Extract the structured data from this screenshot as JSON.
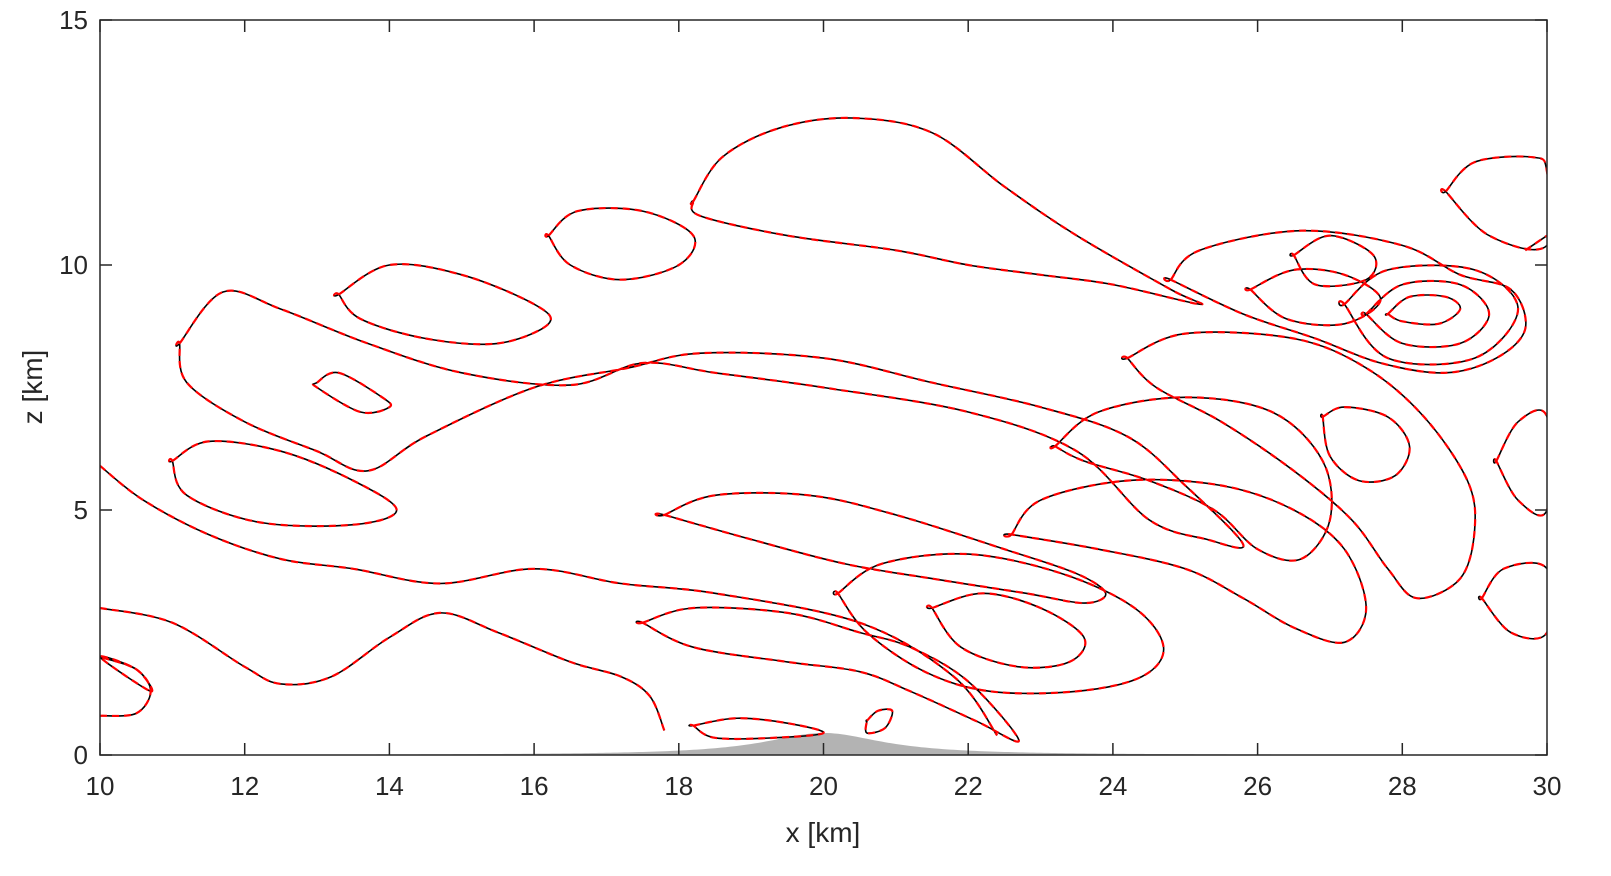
{
  "chart_data": {
    "type": "contour",
    "xlabel": "x [km]",
    "ylabel": "z [km]",
    "xlim": [
      10,
      30
    ],
    "ylim": [
      0,
      15
    ],
    "xticks": [
      "10",
      "12",
      "14",
      "16",
      "18",
      "20",
      "22",
      "24",
      "26",
      "28",
      "30"
    ],
    "yticks": [
      "0",
      "5",
      "10",
      "15"
    ],
    "grid": false,
    "legend": "none",
    "colors": {
      "series_a": "#000000",
      "series_b": "#ff0000",
      "terrain": "#b3b3b3",
      "axes": "#262626"
    },
    "series": [
      {
        "line_style": "solid",
        "color": "#000000"
      },
      {
        "line_style": "dashed",
        "color": "#ff0000"
      }
    ],
    "terrain": {
      "peak_x": 20,
      "peak_height": 0.45,
      "half_width": 1.0
    },
    "contours": [
      {
        "closed": true,
        "points": [
          [
            10.7,
            1.3
          ],
          [
            10.5,
            1.75
          ],
          [
            10,
            2
          ]
        ]
      },
      {
        "closed": false,
        "points": [
          [
            10,
            0.8
          ],
          [
            10.5,
            0.85
          ],
          [
            10.7,
            1.3
          ],
          [
            10.5,
            1.75
          ],
          [
            10,
            2
          ]
        ]
      },
      {
        "closed": false,
        "points": [
          [
            10,
            3
          ],
          [
            11,
            2.7
          ],
          [
            12,
            1.8
          ],
          [
            12.5,
            1.45
          ],
          [
            13.2,
            1.6
          ],
          [
            14,
            2.4
          ],
          [
            14.7,
            2.9
          ],
          [
            15.5,
            2.5
          ],
          [
            16.5,
            1.9
          ],
          [
            17.2,
            1.6
          ],
          [
            17.6,
            1.2
          ],
          [
            17.8,
            0.5
          ]
        ]
      },
      {
        "closed": false,
        "points": [
          [
            10,
            5.9
          ],
          [
            10.6,
            5.2
          ],
          [
            11.5,
            4.5
          ],
          [
            12.5,
            4
          ],
          [
            13.5,
            3.8
          ],
          [
            14.7,
            3.5
          ],
          [
            16,
            3.8
          ],
          [
            17.2,
            3.5
          ],
          [
            18.5,
            3.3
          ],
          [
            20.5,
            2.7
          ],
          [
            21.8,
            1.6
          ],
          [
            22.4,
            0.4
          ]
        ]
      },
      {
        "closed": true,
        "points": [
          [
            11,
            6
          ],
          [
            11.5,
            6.4
          ],
          [
            12.5,
            6.2
          ],
          [
            13.5,
            5.6
          ],
          [
            14.1,
            5
          ],
          [
            13.5,
            4.7
          ],
          [
            12.2,
            4.75
          ],
          [
            11.2,
            5.3
          ],
          [
            11,
            6
          ]
        ]
      },
      {
        "closed": true,
        "points": [
          [
            13,
            7.6
          ],
          [
            13.3,
            7.8
          ],
          [
            13.9,
            7.3
          ],
          [
            14,
            7.1
          ],
          [
            13.6,
            7
          ],
          [
            13,
            7.5
          ]
        ]
      },
      {
        "closed": true,
        "points": [
          [
            11.1,
            8.4
          ],
          [
            11.7,
            9.45
          ],
          [
            12.5,
            9.1
          ],
          [
            13.7,
            8.4
          ],
          [
            15,
            7.8
          ],
          [
            16.5,
            7.55
          ],
          [
            17.5,
            8
          ],
          [
            18.5,
            7.8
          ],
          [
            20,
            7.5
          ],
          [
            22,
            7
          ],
          [
            23.5,
            6.2
          ],
          [
            24.5,
            4.8
          ],
          [
            25.3,
            4.4
          ],
          [
            25.8,
            4.3
          ],
          [
            25,
            5.5
          ],
          [
            24.2,
            6.5
          ],
          [
            23,
            7.1
          ],
          [
            21.5,
            7.6
          ],
          [
            20,
            8.1
          ],
          [
            18.3,
            8.2
          ],
          [
            17.3,
            7.9
          ],
          [
            16,
            7.5
          ],
          [
            14.5,
            6.5
          ],
          [
            13.7,
            5.8
          ],
          [
            13,
            6.2
          ],
          [
            12,
            6.8
          ],
          [
            11.2,
            7.6
          ],
          [
            11.1,
            8.4
          ]
        ]
      },
      {
        "closed": true,
        "points": [
          [
            13.3,
            9.4
          ],
          [
            14,
            10
          ],
          [
            15,
            9.8
          ],
          [
            16,
            9.2
          ],
          [
            16.2,
            8.8
          ],
          [
            15.5,
            8.4
          ],
          [
            14.5,
            8.5
          ],
          [
            13.6,
            8.9
          ],
          [
            13.3,
            9.4
          ]
        ]
      },
      {
        "closed": true,
        "points": [
          [
            16.2,
            10.6
          ],
          [
            16.6,
            11.1
          ],
          [
            17.5,
            11.1
          ],
          [
            18.2,
            10.6
          ],
          [
            18,
            10
          ],
          [
            17.2,
            9.7
          ],
          [
            16.5,
            10
          ],
          [
            16.2,
            10.6
          ]
        ]
      },
      {
        "closed": true,
        "points": [
          [
            18.2,
            11.3
          ],
          [
            18.6,
            12.2
          ],
          [
            19.4,
            12.8
          ],
          [
            20.4,
            13
          ],
          [
            21.5,
            12.7
          ],
          [
            22.5,
            11.6
          ],
          [
            23.5,
            10.6
          ],
          [
            24.8,
            9.5
          ],
          [
            25.2,
            9.2
          ],
          [
            24,
            9.6
          ],
          [
            23,
            9.8
          ],
          [
            22,
            10
          ],
          [
            21,
            10.3
          ],
          [
            19.5,
            10.6
          ],
          [
            18.3,
            11
          ],
          [
            18.2,
            11.3
          ]
        ]
      },
      {
        "closed": true,
        "points": [
          [
            17.8,
            4.9
          ],
          [
            18.5,
            5.3
          ],
          [
            19.8,
            5.3
          ],
          [
            21,
            4.9
          ],
          [
            22.5,
            4.2
          ],
          [
            23.5,
            3.7
          ],
          [
            23.9,
            3.3
          ],
          [
            23.6,
            3.1
          ],
          [
            22.8,
            3.3
          ],
          [
            21.5,
            3.6
          ],
          [
            20.3,
            3.9
          ],
          [
            19,
            4.4
          ],
          [
            17.8,
            4.9
          ]
        ]
      },
      {
        "closed": true,
        "points": [
          [
            17.5,
            2.7
          ],
          [
            18.2,
            3
          ],
          [
            19.5,
            2.9
          ],
          [
            20.5,
            2.5
          ],
          [
            21.2,
            2.2
          ],
          [
            22,
            1.5
          ],
          [
            22.7,
            0.3
          ],
          [
            22.1,
            0.7
          ],
          [
            21.2,
            1.3
          ],
          [
            20.5,
            1.7
          ],
          [
            19.5,
            1.9
          ],
          [
            18.2,
            2.2
          ],
          [
            17.5,
            2.7
          ]
        ]
      },
      {
        "closed": true,
        "points": [
          [
            18.2,
            0.6
          ],
          [
            18.8,
            0.75
          ],
          [
            19.5,
            0.65
          ],
          [
            20,
            0.45
          ],
          [
            19.3,
            0.35
          ],
          [
            18.5,
            0.35
          ],
          [
            18.2,
            0.6
          ]
        ]
      },
      {
        "closed": true,
        "points": [
          [
            20.6,
            0.7
          ],
          [
            20.75,
            0.9
          ],
          [
            20.95,
            0.9
          ],
          [
            20.85,
            0.55
          ],
          [
            20.6,
            0.45
          ],
          [
            20.6,
            0.7
          ]
        ]
      },
      {
        "closed": true,
        "points": [
          [
            20.2,
            3.3
          ],
          [
            20.8,
            3.9
          ],
          [
            22,
            4.1
          ],
          [
            23.3,
            3.7
          ],
          [
            24.3,
            3
          ],
          [
            24.7,
            2.2
          ],
          [
            24.4,
            1.6
          ],
          [
            23.5,
            1.3
          ],
          [
            22.3,
            1.3
          ],
          [
            21.4,
            1.7
          ],
          [
            20.6,
            2.5
          ],
          [
            20.2,
            3.3
          ]
        ]
      },
      {
        "closed": true,
        "points": [
          [
            21.5,
            3
          ],
          [
            22.2,
            3.3
          ],
          [
            23,
            3
          ],
          [
            23.6,
            2.4
          ],
          [
            23.4,
            1.9
          ],
          [
            22.7,
            1.8
          ],
          [
            21.9,
            2.2
          ],
          [
            21.5,
            3
          ]
        ]
      },
      {
        "closed": true,
        "points": [
          [
            22.6,
            4.5
          ],
          [
            23,
            5.2
          ],
          [
            24.2,
            5.6
          ],
          [
            25.5,
            5.5
          ],
          [
            26.5,
            5
          ],
          [
            27.2,
            4.2
          ],
          [
            27.5,
            3
          ],
          [
            27.2,
            2.3
          ],
          [
            26.5,
            2.6
          ],
          [
            25.8,
            3.2
          ],
          [
            25,
            3.8
          ],
          [
            23.8,
            4.2
          ],
          [
            22.6,
            4.5
          ]
        ]
      },
      {
        "closed": true,
        "points": [
          [
            23.2,
            6.3
          ],
          [
            23.8,
            7
          ],
          [
            25,
            7.3
          ],
          [
            26.2,
            7
          ],
          [
            26.9,
            6
          ],
          [
            27,
            4.8
          ],
          [
            26.6,
            4
          ],
          [
            26,
            4.2
          ],
          [
            25.4,
            5
          ],
          [
            24.5,
            5.6
          ],
          [
            23.6,
            6
          ],
          [
            23.2,
            6.3
          ]
        ]
      },
      {
        "closed": true,
        "points": [
          [
            24.2,
            8.1
          ],
          [
            25,
            8.6
          ],
          [
            26.5,
            8.5
          ],
          [
            27.5,
            7.9
          ],
          [
            28.3,
            6.9
          ],
          [
            28.9,
            5.6
          ],
          [
            29,
            4.6
          ],
          [
            28.8,
            3.6
          ],
          [
            28.2,
            3.2
          ],
          [
            27.8,
            3.8
          ],
          [
            27.3,
            4.8
          ],
          [
            26.5,
            5.8
          ],
          [
            25.5,
            6.8
          ],
          [
            24.6,
            7.5
          ],
          [
            24.2,
            8.1
          ]
        ]
      },
      {
        "closed": true,
        "points": [
          [
            24.8,
            9.7
          ],
          [
            25.2,
            10.3
          ],
          [
            26.6,
            10.7
          ],
          [
            28,
            10.4
          ],
          [
            28.8,
            9.8
          ],
          [
            29.5,
            9.5
          ],
          [
            29.7,
            8.7
          ],
          [
            29.3,
            8.1
          ],
          [
            28.6,
            7.8
          ],
          [
            27.7,
            8
          ],
          [
            26.8,
            8.5
          ],
          [
            25.8,
            9
          ],
          [
            24.8,
            9.7
          ]
        ]
      },
      {
        "closed": true,
        "points": [
          [
            25.9,
            9.5
          ],
          [
            26.5,
            9.9
          ],
          [
            27.2,
            9.8
          ],
          [
            27.7,
            9.3
          ],
          [
            27.2,
            8.8
          ],
          [
            26.4,
            8.9
          ],
          [
            25.9,
            9.5
          ]
        ]
      },
      {
        "closed": true,
        "points": [
          [
            27.8,
            9
          ],
          [
            28.1,
            9.35
          ],
          [
            28.6,
            9.35
          ],
          [
            28.8,
            9.1
          ],
          [
            28.5,
            8.8
          ],
          [
            28,
            8.85
          ],
          [
            27.8,
            9
          ]
        ]
      },
      {
        "closed": true,
        "points": [
          [
            27.5,
            9
          ],
          [
            28,
            9.6
          ],
          [
            28.8,
            9.6
          ],
          [
            29.2,
            9
          ],
          [
            28.8,
            8.4
          ],
          [
            28,
            8.4
          ],
          [
            27.5,
            9
          ]
        ]
      },
      {
        "closed": true,
        "points": [
          [
            27.2,
            9.2
          ],
          [
            27.8,
            9.9
          ],
          [
            29,
            9.9
          ],
          [
            29.6,
            9.1
          ],
          [
            29,
            8.1
          ],
          [
            27.8,
            8.1
          ],
          [
            27.2,
            9.2
          ]
        ]
      },
      {
        "closed": true,
        "points": [
          [
            26.9,
            6.9
          ],
          [
            27.2,
            7.1
          ],
          [
            27.8,
            6.9
          ],
          [
            28.1,
            6.3
          ],
          [
            27.9,
            5.7
          ],
          [
            27.4,
            5.6
          ],
          [
            27,
            6.1
          ],
          [
            26.9,
            6.9
          ]
        ]
      },
      {
        "closed": true,
        "points": [
          [
            29.3,
            6
          ],
          [
            29.6,
            6.8
          ],
          [
            30,
            6.9
          ],
          [
            30,
            5
          ],
          [
            29.6,
            5.2
          ],
          [
            29.3,
            6
          ]
        ]
      },
      {
        "closed": true,
        "points": [
          [
            29.1,
            3.2
          ],
          [
            29.4,
            3.8
          ],
          [
            30,
            3.8
          ],
          [
            30,
            2.5
          ],
          [
            29.5,
            2.5
          ],
          [
            29.1,
            3.2
          ]
        ]
      },
      {
        "closed": true,
        "points": [
          [
            28.6,
            11.5
          ],
          [
            29,
            12.1
          ],
          [
            29.8,
            12.2
          ],
          [
            30,
            11.9
          ],
          [
            30,
            10.4
          ],
          [
            29.2,
            10.6
          ],
          [
            28.6,
            11.5
          ]
        ]
      },
      {
        "closed": false,
        "points": [
          [
            29.7,
            10.3
          ],
          [
            30,
            10.6
          ]
        ]
      },
      {
        "closed": true,
        "points": [
          [
            26.5,
            10.2
          ],
          [
            27,
            10.6
          ],
          [
            27.6,
            10.2
          ],
          [
            27.5,
            9.7
          ],
          [
            26.8,
            9.6
          ],
          [
            26.5,
            10.2
          ]
        ]
      }
    ]
  }
}
